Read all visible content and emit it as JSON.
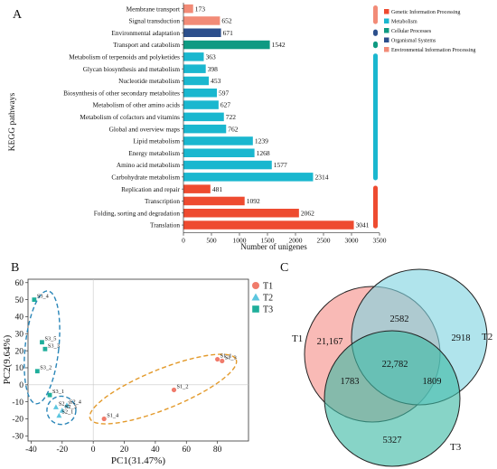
{
  "chart_data": [
    {
      "type": "bar",
      "panel": "A",
      "orientation": "horizontal",
      "ylabel": "KEGG pathways",
      "xlabel": "Number of unigenes",
      "xlim": [
        0,
        3500
      ],
      "xticks": [
        0,
        500,
        1000,
        1500,
        2000,
        2500,
        3000,
        3500
      ],
      "categories": [
        "Membrane transport",
        "Signal transduction",
        "Environmental adaptation",
        "Transport and catabolism",
        "Metabolism of terpenoids and polyketides",
        "Glycan biosynthesis and metabolism",
        "Nucleotide metabolism",
        "Biosynthesis of other secondary metabolites",
        "Metabolism of other amino acids",
        "Metabolism of cofactors and vitamins",
        "Global and overview maps",
        "Lipid metabolism",
        "Energy metabolism",
        "Amino acid metabolism",
        "Carbohydrate metabolism",
        "Replication and repair",
        "Transcription",
        "Folding, sorting and degradation",
        "Translation"
      ],
      "values": [
        173,
        652,
        671,
        1542,
        363,
        398,
        453,
        597,
        627,
        722,
        762,
        1239,
        1268,
        1577,
        2314,
        481,
        1092,
        2062,
        3041
      ],
      "groups": [
        4,
        4,
        3,
        2,
        1,
        1,
        1,
        1,
        1,
        1,
        1,
        1,
        1,
        1,
        1,
        0,
        0,
        0,
        0
      ],
      "legend": [
        {
          "name": "Genetic Information Processing",
          "color": "#ee4b30"
        },
        {
          "name": "Metabolism",
          "color": "#1ab7cf"
        },
        {
          "name": "Cellular Processes",
          "color": "#0f9a82"
        },
        {
          "name": "Organismal Systems",
          "color": "#2c4f8c"
        },
        {
          "name": "Environmental Information Processing",
          "color": "#f28b77"
        }
      ],
      "group_colors": [
        "#ee4b30",
        "#1ab7cf",
        "#0f9a82",
        "#2c4f8c",
        "#f28b77"
      ],
      "legend_position": "top-right"
    },
    {
      "type": "scatter",
      "panel": "B",
      "xlabel": "PC1(31.47%)",
      "ylabel": "PC2(9.64%)",
      "xlim": [
        -42,
        100
      ],
      "ylim": [
        -33,
        62
      ],
      "xticks": [
        -40,
        -20,
        0,
        20,
        40,
        60,
        80
      ],
      "yticks": [
        -30,
        -20,
        -10,
        0,
        10,
        20,
        30,
        40,
        50,
        60
      ],
      "legend_position": "top-right",
      "series": [
        {
          "name": "T1",
          "color": "#f07b6b",
          "marker": "circle",
          "points": [
            {
              "label": "S1_1",
              "x": 80,
              "y": 15
            },
            {
              "label": "S1_2",
              "x": 52,
              "y": -3
            },
            {
              "label": "S1_3",
              "x": 83,
              "y": 14
            },
            {
              "label": "S1_4",
              "x": 7,
              "y": -20
            }
          ]
        },
        {
          "name": "T2",
          "color": "#5cc6df",
          "marker": "triangle",
          "points": [
            {
              "label": "S2_1",
              "x": -22,
              "y": -18
            },
            {
              "label": "S2_2",
              "x": -24,
              "y": -13
            },
            {
              "label": "S2_3",
              "x": -20,
              "y": -15
            },
            {
              "label": "S2_4",
              "x": -17,
              "y": -12
            }
          ]
        },
        {
          "name": "T3",
          "color": "#1fae9b",
          "marker": "square",
          "points": [
            {
              "label": "S3_1",
              "x": -28,
              "y": -6
            },
            {
              "label": "S3_2",
              "x": -36,
              "y": 8
            },
            {
              "label": "S3_3",
              "x": -31,
              "y": 21
            },
            {
              "label": "S3_4",
              "x": -38,
              "y": 50
            },
            {
              "label": "S3_5",
              "x": -33,
              "y": 25
            }
          ]
        }
      ]
    },
    {
      "type": "venn",
      "panel": "C",
      "sets": [
        {
          "name": "T1",
          "color": "#f69089"
        },
        {
          "name": "T2",
          "color": "#7fd4e0"
        },
        {
          "name": "T3",
          "color": "#3db9a4"
        }
      ],
      "regions": {
        "T1_only": "21,167",
        "T2_only": "2918",
        "T3_only": "5327",
        "T1_T2": "2582",
        "T1_T3": "1783",
        "T2_T3": "1809",
        "T1_T2_T3": "22,782"
      }
    }
  ]
}
